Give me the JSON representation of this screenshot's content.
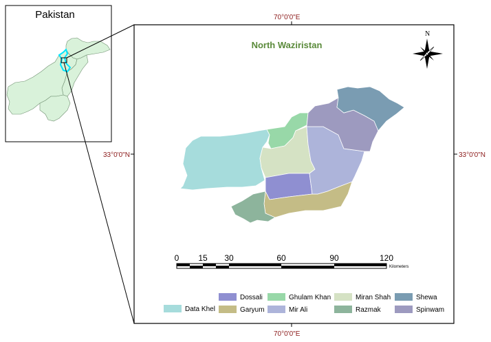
{
  "inset": {
    "title": "Pakistan"
  },
  "main_map": {
    "title": "North Waziristan",
    "coords": {
      "top": "70°0'0\"E",
      "bottom": "70°0'0\"E",
      "left": "33°0'0\"N",
      "right": "33°0'0\"N"
    },
    "north_label": "N"
  },
  "regions": [
    {
      "id": "data-khel",
      "name": "Data Khel",
      "color": "#a6dcdc"
    },
    {
      "id": "dossali",
      "name": "Dossali",
      "color": "#8f8fd1"
    },
    {
      "id": "garyum",
      "name": "Garyum",
      "color": "#c4bc86"
    },
    {
      "id": "ghulam-khan",
      "name": "Ghulam Khan",
      "color": "#98d8a8"
    },
    {
      "id": "mir-ali",
      "name": "Mir Ali",
      "color": "#adb4da"
    },
    {
      "id": "miran-shah",
      "name": "Miran Shah",
      "color": "#d5e2c4"
    },
    {
      "id": "razmak",
      "name": "Razmak",
      "color": "#8db49c"
    },
    {
      "id": "shewa",
      "name": "Shewa",
      "color": "#7a9cb2"
    },
    {
      "id": "spinwam",
      "name": "Spinwam",
      "color": "#9d9abf"
    }
  ],
  "scale_bar": {
    "labels": [
      "0",
      "15",
      "30",
      "60",
      "90",
      "120"
    ],
    "unit": "Kilometers"
  },
  "colors": {
    "pakistan_fill": "#d9f2da",
    "fata_outline": "#00e5ff",
    "frame": "#000000",
    "coord_text": "#8b1a1a",
    "title_text": "#5a8a3a"
  }
}
